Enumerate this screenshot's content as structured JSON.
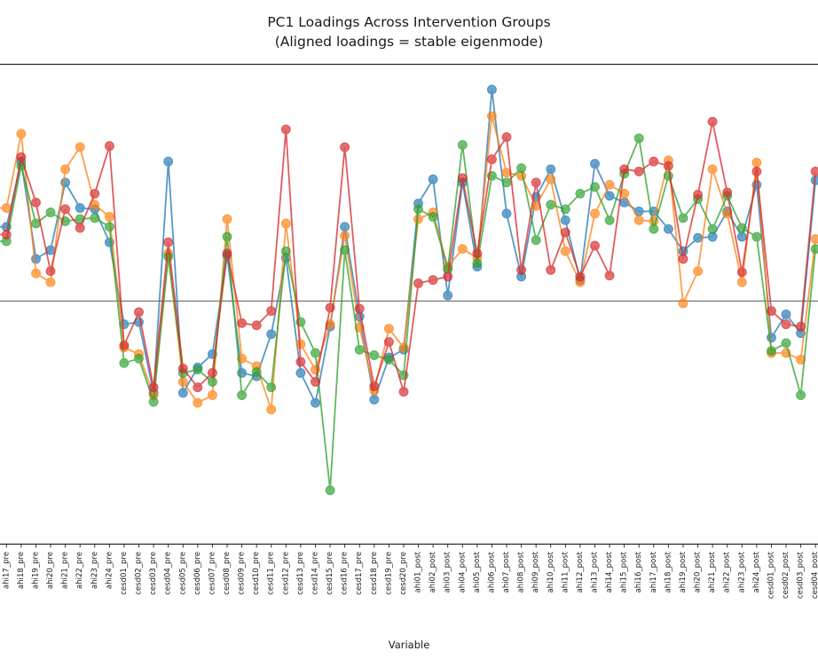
{
  "title": "PC1 Loadings Across Intervention Groups",
  "subtitle": "(Aligned loadings = stable eigenmode)",
  "xlabel": "Variable",
  "chart_data": {
    "type": "line",
    "title": "PC1 Loadings Across Intervention Groups",
    "subtitle": "(Aligned loadings = stable eigenmode)",
    "xlabel": "Variable",
    "ylabel": "",
    "grid": false,
    "legend_position": "none (cropped out of view)",
    "marker": "circle",
    "alpha": 0.75,
    "zero_line": true,
    "ylim": [
      -0.2196,
      0.2138
    ],
    "categories": [
      "ahi17_pre",
      "ahi18_pre",
      "ahi19_pre",
      "ahi20_pre",
      "ahi21_pre",
      "ahi22_pre",
      "ahi23_pre",
      "ahi24_pre",
      "cesd01_pre",
      "cesd02_pre",
      "cesd03_pre",
      "cesd04_pre",
      "cesd05_pre",
      "cesd06_pre",
      "cesd07_pre",
      "cesd08_pre",
      "cesd09_pre",
      "cesd10_pre",
      "cesd11_pre",
      "cesd12_pre",
      "cesd13_pre",
      "cesd14_pre",
      "cesd15_pre",
      "cesd16_pre",
      "cesd17_pre",
      "cesd18_pre",
      "cesd19_pre",
      "cesd20_pre",
      "ahi01_post",
      "ahi02_post",
      "ahi03_post",
      "ahi04_post",
      "ahi05_post",
      "ahi06_post",
      "ahi07_post",
      "ahi08_post",
      "ahi09_post",
      "ahi10_post",
      "ahi11_post",
      "ahi12_post",
      "ahi13_post",
      "ahi14_post",
      "ahi15_post",
      "ahi16_post",
      "ahi17_post",
      "ahi18_post",
      "ahi19_post",
      "ahi20_post",
      "ahi21_post",
      "ahi22_post",
      "ahi23_post",
      "ahi24_post",
      "cesd01_post",
      "cesd02_post",
      "cesd03_post",
      "cesd04_post"
    ],
    "series": [
      {
        "name": "blue",
        "color": "#1f77b4",
        "values": [
          0.067,
          0.126,
          0.038,
          0.046,
          0.107,
          0.084,
          0.083,
          0.053,
          -0.021,
          -0.019,
          -0.083,
          0.126,
          -0.083,
          -0.06,
          -0.048,
          0.041,
          -0.065,
          -0.068,
          -0.03,
          0.039,
          -0.065,
          -0.092,
          -0.023,
          0.067,
          -0.014,
          -0.089,
          -0.051,
          -0.044,
          0.088,
          0.11,
          0.005,
          0.107,
          0.031,
          0.191,
          0.079,
          0.022,
          0.094,
          0.119,
          0.073,
          0.019,
          0.124,
          0.095,
          0.089,
          0.081,
          0.081,
          0.065,
          0.045,
          0.057,
          0.058,
          0.081,
          0.058,
          0.105,
          -0.033,
          -0.012,
          -0.029,
          0.109
        ]
      },
      {
        "name": "orange",
        "color": "#ff7f0e",
        "values": [
          0.084,
          0.151,
          0.025,
          0.017,
          0.119,
          0.139,
          0.087,
          0.076,
          -0.042,
          -0.048,
          -0.085,
          0.043,
          -0.073,
          -0.092,
          -0.085,
          0.074,
          -0.052,
          -0.059,
          -0.098,
          0.07,
          -0.039,
          -0.062,
          -0.021,
          0.059,
          -0.024,
          -0.081,
          -0.025,
          -0.042,
          0.074,
          0.08,
          0.031,
          0.047,
          0.039,
          0.167,
          0.116,
          0.113,
          0.086,
          0.11,
          0.045,
          0.017,
          0.079,
          0.105,
          0.097,
          0.073,
          0.072,
          0.127,
          -0.002,
          0.027,
          0.119,
          0.079,
          0.017,
          0.125,
          -0.047,
          -0.047,
          -0.053,
          0.056
        ]
      },
      {
        "name": "green",
        "color": "#2ca02c",
        "values": [
          0.054,
          0.122,
          0.07,
          0.08,
          0.072,
          0.074,
          0.075,
          0.067,
          -0.056,
          -0.052,
          -0.091,
          0.04,
          -0.065,
          -0.062,
          -0.073,
          0.058,
          -0.085,
          -0.064,
          -0.078,
          0.045,
          -0.019,
          -0.047,
          -0.171,
          0.046,
          -0.044,
          -0.049,
          -0.053,
          -0.067,
          0.083,
          0.076,
          0.029,
          0.141,
          0.034,
          0.113,
          0.107,
          0.12,
          0.055,
          0.087,
          0.083,
          0.097,
          0.103,
          0.073,
          0.115,
          0.147,
          0.065,
          0.113,
          0.075,
          0.092,
          0.065,
          0.095,
          0.066,
          0.058,
          -0.045,
          -0.038,
          -0.085,
          0.047
        ]
      },
      {
        "name": "red",
        "color": "#d62728",
        "values": [
          0.06,
          0.13,
          0.089,
          0.027,
          0.083,
          0.066,
          0.097,
          0.14,
          -0.04,
          -0.01,
          -0.078,
          0.053,
          -0.061,
          -0.078,
          -0.065,
          0.043,
          -0.02,
          -0.022,
          -0.009,
          0.155,
          -0.055,
          -0.073,
          -0.006,
          0.139,
          -0.007,
          -0.077,
          -0.037,
          -0.082,
          0.016,
          0.019,
          0.022,
          0.111,
          0.043,
          0.128,
          0.148,
          0.028,
          0.107,
          0.028,
          0.062,
          0.022,
          0.05,
          0.023,
          0.119,
          0.117,
          0.126,
          0.122,
          0.038,
          0.096,
          0.162,
          0.098,
          0.026,
          0.117,
          -0.009,
          -0.021,
          -0.023,
          0.117
        ]
      }
    ]
  }
}
